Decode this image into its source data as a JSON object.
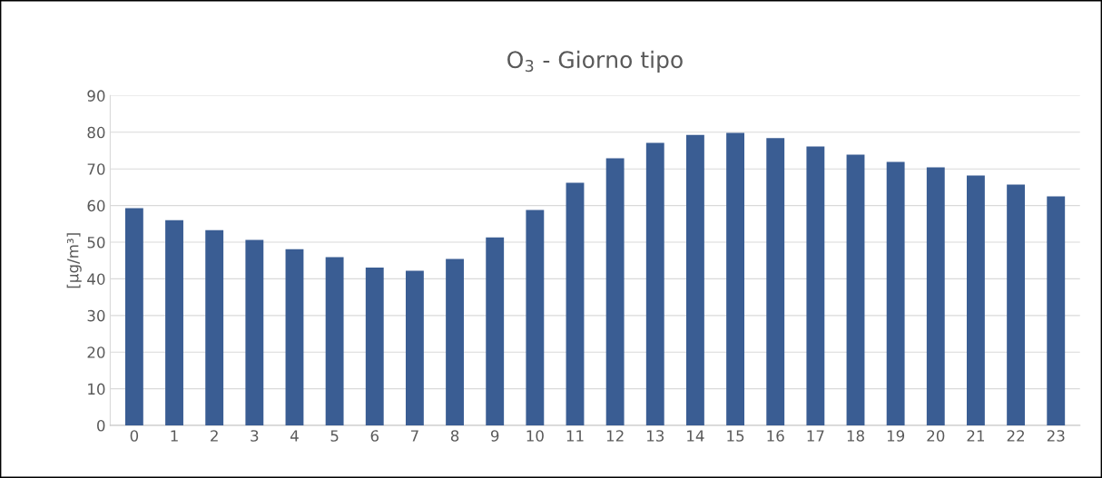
{
  "chart_data": {
    "type": "bar",
    "title": "O$_{3}$ - Giorno tipo",
    "ylabel": "[µg/m³]",
    "categories": [
      "0",
      "1",
      "2",
      "3",
      "4",
      "5",
      "6",
      "7",
      "8",
      "9",
      "10",
      "11",
      "12",
      "13",
      "14",
      "15",
      "16",
      "17",
      "18",
      "19",
      "20",
      "21",
      "22",
      "23"
    ],
    "series": [
      {
        "color": "#3a5d93",
        "values": [
          59.3,
          56.0,
          53.3,
          50.6,
          48.1,
          45.9,
          43.1,
          42.2,
          45.4,
          51.3,
          58.8,
          66.2,
          72.9,
          77.1,
          79.3,
          79.8,
          78.4,
          76.1,
          73.9,
          71.9,
          70.4,
          68.2,
          65.7,
          62.5
        ]
      }
    ],
    "ylim": [
      0,
      90
    ],
    "yticks": [
      0,
      10,
      20,
      30,
      40,
      50,
      60,
      70,
      80,
      90
    ],
    "grid": "y",
    "legend": false
  }
}
